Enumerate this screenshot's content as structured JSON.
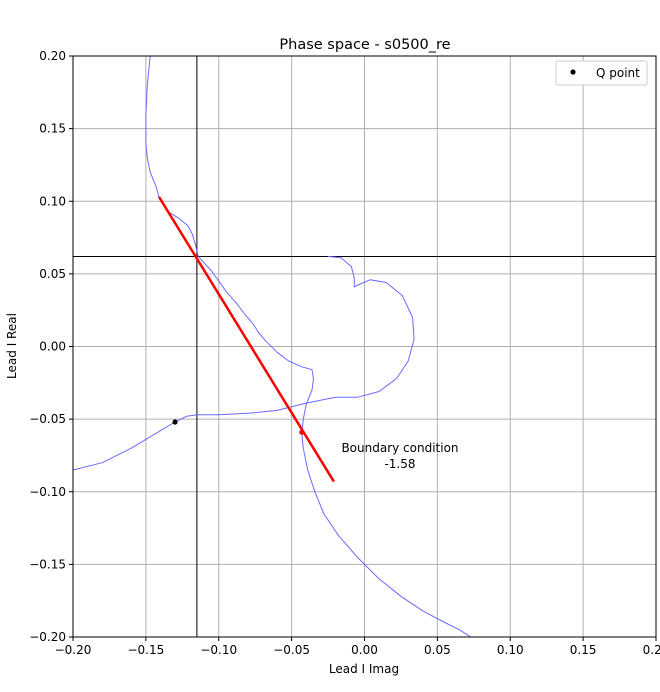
{
  "chart_data": {
    "type": "line",
    "title": "Phase space - s0500_re",
    "xlabel": "Lead I Imag",
    "ylabel": "Lead I Real",
    "xlim": [
      -0.2,
      0.2
    ],
    "ylim": [
      -0.2,
      0.2
    ],
    "xticks": [
      -0.2,
      -0.15,
      -0.1,
      -0.05,
      0.0,
      0.05,
      0.1,
      0.15,
      0.2
    ],
    "yticks": [
      -0.2,
      -0.15,
      -0.1,
      -0.05,
      0.0,
      0.05,
      0.1,
      0.15,
      0.2
    ],
    "xtick_labels": [
      "−0.20",
      "−0.15",
      "−0.10",
      "−0.05",
      "0.00",
      "0.05",
      "0.10",
      "0.15",
      "0.20"
    ],
    "ytick_labels": [
      "−0.20",
      "−0.15",
      "−0.10",
      "−0.05",
      "0.00",
      "0.05",
      "0.10",
      "0.15",
      "0.20"
    ],
    "grid": true,
    "legend": {
      "placement": "top-right",
      "entries": [
        {
          "label": "Q point",
          "marker": "dot",
          "color": "#000000"
        }
      ]
    },
    "crosshair": {
      "x": -0.115,
      "y": 0.062
    },
    "trajectory": {
      "color": "#6a6aff",
      "points": [
        [
          -0.147,
          0.2
        ],
        [
          -0.149,
          0.18
        ],
        [
          -0.15,
          0.16
        ],
        [
          -0.15,
          0.14
        ],
        [
          -0.149,
          0.13
        ],
        [
          -0.147,
          0.12
        ],
        [
          -0.143,
          0.11
        ],
        [
          -0.141,
          0.103
        ],
        [
          -0.135,
          0.093
        ],
        [
          -0.127,
          0.088
        ],
        [
          -0.121,
          0.083
        ],
        [
          -0.118,
          0.077
        ],
        [
          -0.116,
          0.07
        ],
        [
          -0.114,
          0.062
        ],
        [
          -0.105,
          0.052
        ],
        [
          -0.1,
          0.045
        ],
        [
          -0.095,
          0.038
        ],
        [
          -0.088,
          0.03
        ],
        [
          -0.082,
          0.022
        ],
        [
          -0.076,
          0.015
        ],
        [
          -0.073,
          0.01
        ],
        [
          -0.068,
          0.004
        ],
        [
          -0.06,
          -0.004
        ],
        [
          -0.052,
          -0.01
        ],
        [
          -0.043,
          -0.014
        ],
        [
          -0.036,
          -0.016
        ],
        [
          -0.035,
          -0.022
        ],
        [
          -0.036,
          -0.03
        ],
        [
          -0.04,
          -0.04
        ],
        [
          -0.042,
          -0.05
        ],
        [
          -0.043,
          -0.06
        ],
        [
          -0.042,
          -0.07
        ],
        [
          -0.039,
          -0.085
        ],
        [
          -0.034,
          -0.1
        ],
        [
          -0.028,
          -0.115
        ],
        [
          -0.018,
          -0.13
        ],
        [
          -0.005,
          -0.145
        ],
        [
          0.01,
          -0.16
        ],
        [
          0.025,
          -0.172
        ],
        [
          0.04,
          -0.182
        ],
        [
          0.055,
          -0.19
        ],
        [
          0.065,
          -0.195
        ],
        [
          0.073,
          -0.2
        ]
      ],
      "segment2": [
        [
          -0.2,
          -0.085
        ],
        [
          -0.18,
          -0.08
        ],
        [
          -0.16,
          -0.07
        ],
        [
          -0.14,
          -0.058
        ],
        [
          -0.13,
          -0.052
        ],
        [
          -0.122,
          -0.048
        ],
        [
          -0.115,
          -0.047
        ],
        [
          -0.1,
          -0.047
        ],
        [
          -0.08,
          -0.046
        ],
        [
          -0.06,
          -0.044
        ],
        [
          -0.04,
          -0.039
        ],
        [
          -0.02,
          -0.035
        ],
        [
          -0.005,
          -0.035
        ],
        [
          0.01,
          -0.031
        ],
        [
          0.022,
          -0.022
        ],
        [
          0.03,
          -0.01
        ],
        [
          0.034,
          0.005
        ],
        [
          0.033,
          0.02
        ],
        [
          0.026,
          0.035
        ],
        [
          0.015,
          0.044
        ],
        [
          0.004,
          0.046
        ],
        [
          -0.003,
          0.043
        ],
        [
          -0.007,
          0.041
        ],
        [
          -0.007,
          0.047
        ],
        [
          -0.009,
          0.055
        ],
        [
          -0.016,
          0.061
        ],
        [
          -0.025,
          0.062
        ]
      ]
    },
    "boundary_line": {
      "color": "#ff0000",
      "points": [
        [
          -0.141,
          0.103
        ],
        [
          -0.021,
          -0.093
        ]
      ]
    },
    "q_point": {
      "x": -0.13,
      "y": -0.052
    },
    "boundary_point": {
      "x": -0.043,
      "y": -0.059
    },
    "annotation": {
      "lines": [
        "Boundary condition",
        "-1.58"
      ],
      "anchor": [
        -0.005,
        -0.08
      ]
    }
  }
}
